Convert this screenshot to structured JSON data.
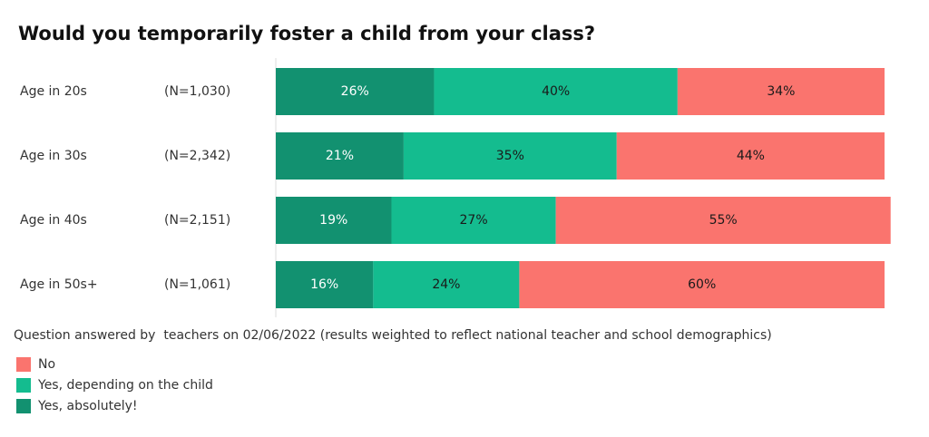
{
  "chart_data": {
    "type": "stacked_bar_horizontal",
    "title": "Would you temporarily foster a child from your class?",
    "categories": [
      "Age in 20s",
      "Age in 30s",
      "Age in 40s",
      "Age in 50s+"
    ],
    "sample_sizes": [
      "(N=1,030)",
      "(N=2,342)",
      "(N=2,151)",
      "(N=1,061)"
    ],
    "series": [
      {
        "name": "Yes, absolutely!",
        "color": "#129170",
        "label_color": "#ffffff",
        "values": [
          26,
          21,
          19,
          16
        ],
        "value_labels": [
          "26%",
          "21%",
          "19%",
          "16%"
        ]
      },
      {
        "name": "Yes, depending on the child",
        "color": "#14bc8f",
        "label_color": "#1a1a1a",
        "values": [
          40,
          35,
          27,
          24
        ],
        "value_labels": [
          "40%",
          "35%",
          "27%",
          "24%"
        ]
      },
      {
        "name": "No",
        "color": "#fa746e",
        "label_color": "#1a1a1a",
        "values": [
          34,
          44,
          55,
          60
        ],
        "value_labels": [
          "34%",
          "44%",
          "55%",
          "60%"
        ]
      }
    ],
    "xlim": [
      0,
      100
    ],
    "note": "Question answered by  teachers on 02/06/2022 (results weighted to reflect national teacher and school demographics)"
  }
}
